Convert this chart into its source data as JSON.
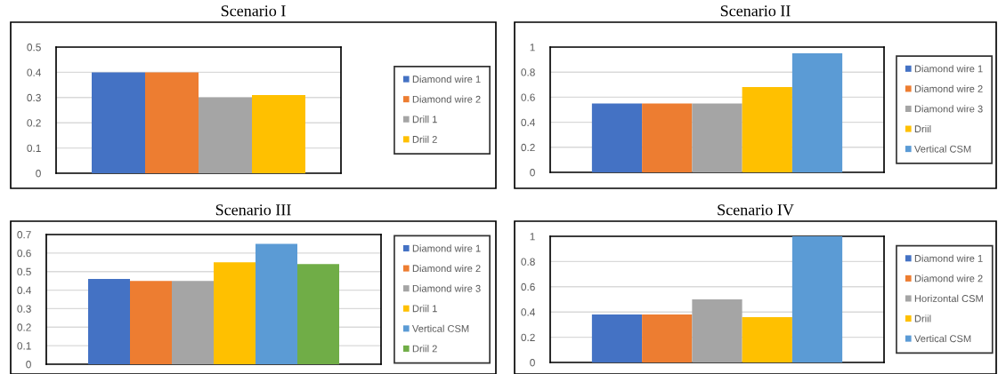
{
  "chart_data": [
    {
      "type": "bar",
      "title": "Scenario I",
      "categories": [
        null
      ],
      "ylim": [
        0,
        0.5
      ],
      "yticks": [
        0,
        0.1,
        0.2,
        0.3,
        0.4,
        0.5
      ],
      "grid": "y",
      "legend": "right",
      "series": [
        {
          "name": "Diamond wire 1",
          "color": "#4472c4",
          "values": [
            0.4
          ]
        },
        {
          "name": "Diamond wire 2",
          "color": "#ed7d31",
          "values": [
            0.4
          ]
        },
        {
          "name": "Drill 1",
          "color": "#a5a5a5",
          "values": [
            0.3
          ]
        },
        {
          "name": "Driil 2",
          "color": "#ffc000",
          "values": [
            0.31
          ]
        }
      ]
    },
    {
      "type": "bar",
      "title": "Scenario II",
      "categories": [
        null
      ],
      "ylim": [
        0,
        1
      ],
      "yticks": [
        0,
        0.2,
        0.4,
        0.6,
        0.8,
        1
      ],
      "grid": "y",
      "legend": "right",
      "series": [
        {
          "name": "Diamond wire 1",
          "color": "#4472c4",
          "values": [
            0.55
          ]
        },
        {
          "name": "Diamond wire 2",
          "color": "#ed7d31",
          "values": [
            0.55
          ]
        },
        {
          "name": "Diamond wire 3",
          "color": "#a5a5a5",
          "values": [
            0.55
          ]
        },
        {
          "name": "Driil",
          "color": "#ffc000",
          "values": [
            0.68
          ]
        },
        {
          "name": "Vertical CSM",
          "color": "#5b9bd5",
          "values": [
            0.95
          ]
        }
      ]
    },
    {
      "type": "bar",
      "title": "Scenario III",
      "categories": [
        null
      ],
      "ylim": [
        0,
        0.7
      ],
      "yticks": [
        0,
        0.1,
        0.2,
        0.3,
        0.4,
        0.5,
        0.6,
        0.7
      ],
      "grid": "y",
      "legend": "right",
      "series": [
        {
          "name": "Diamond wire 1",
          "color": "#4472c4",
          "values": [
            0.46
          ]
        },
        {
          "name": "Diamond wire 2",
          "color": "#ed7d31",
          "values": [
            0.45
          ]
        },
        {
          "name": "Diamond wire 3",
          "color": "#a5a5a5",
          "values": [
            0.45
          ]
        },
        {
          "name": "Driil 1",
          "color": "#ffc000",
          "values": [
            0.55
          ]
        },
        {
          "name": "Vertical CSM",
          "color": "#5b9bd5",
          "values": [
            0.65
          ]
        },
        {
          "name": "Driil 2",
          "color": "#70ad47",
          "values": [
            0.54
          ]
        }
      ]
    },
    {
      "type": "bar",
      "title": "Scenario IV",
      "categories": [
        null
      ],
      "ylim": [
        0,
        1
      ],
      "yticks": [
        0,
        0.2,
        0.4,
        0.6,
        0.8,
        1
      ],
      "grid": "y",
      "legend": "right",
      "series": [
        {
          "name": "Diamond wire 1",
          "color": "#4472c4",
          "values": [
            0.38
          ]
        },
        {
          "name": "Diamond wire 2",
          "color": "#ed7d31",
          "values": [
            0.38
          ]
        },
        {
          "name": "Horizontal CSM",
          "color": "#a5a5a5",
          "values": [
            0.5
          ]
        },
        {
          "name": "Driil",
          "color": "#ffc000",
          "values": [
            0.36
          ]
        },
        {
          "name": "Vertical CSM",
          "color": "#5b9bd5",
          "values": [
            1.0
          ]
        }
      ]
    }
  ]
}
